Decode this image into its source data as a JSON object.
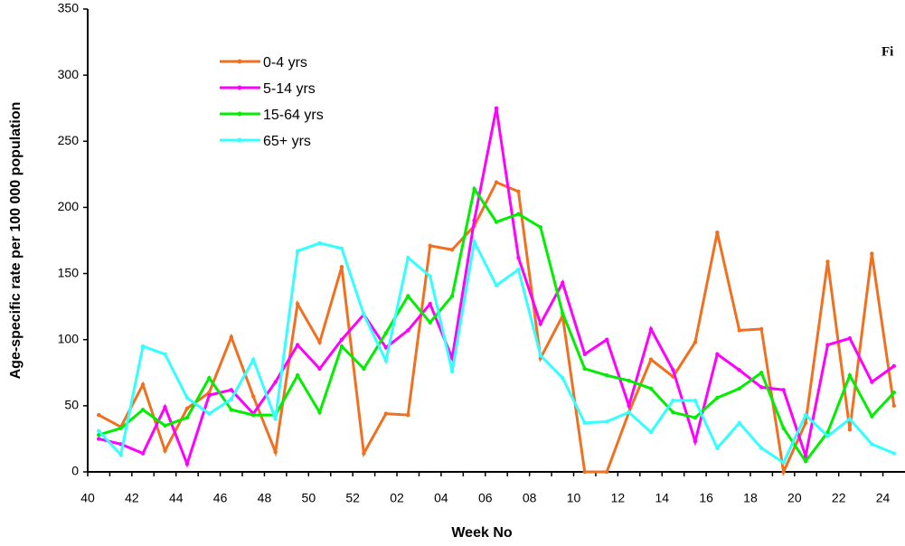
{
  "chart_data": {
    "type": "line",
    "y_label": "Age-specific rate per 100 000 population",
    "x_label": "Week No",
    "annotation": "Fi",
    "categories": [
      "40",
      null,
      "42",
      null,
      "44",
      null,
      "46",
      null,
      "48",
      null,
      "50",
      null,
      "52",
      null,
      "02",
      null,
      "04",
      null,
      "06",
      null,
      "08",
      null,
      "10",
      null,
      "12",
      null,
      "14",
      null,
      "16",
      null,
      "18",
      null,
      "20",
      null,
      "22",
      null,
      "24"
    ],
    "series": [
      {
        "name": "0-4 yrs",
        "color": "#f07020",
        "values": [
          43,
          34,
          66,
          16,
          48,
          60,
          102,
          57,
          15,
          127,
          98,
          155,
          14,
          44,
          43,
          171,
          168,
          186,
          219,
          212,
          86,
          118,
          0,
          0,
          45,
          85,
          72,
          98,
          181,
          107,
          108,
          0,
          37,
          159,
          32,
          165,
          50
        ]
      },
      {
        "name": "5-14 yrs",
        "color": "#ff00ff",
        "values": [
          25,
          21,
          14,
          49,
          6,
          58,
          62,
          44,
          68,
          96,
          78,
          100,
          119,
          94,
          107,
          127,
          86,
          190,
          275,
          162,
          112,
          143,
          89,
          100,
          50,
          108,
          77,
          23,
          89,
          77,
          64,
          62,
          12,
          96,
          101,
          68,
          80
        ]
      },
      {
        "name": "15-64 yrs",
        "color": "#00ee00",
        "values": [
          28,
          33,
          47,
          35,
          41,
          71,
          47,
          43,
          43,
          73,
          45,
          95,
          78,
          105,
          133,
          113,
          133,
          214,
          189,
          195,
          185,
          120,
          78,
          73,
          69,
          63,
          45,
          41,
          56,
          63,
          75,
          33,
          8,
          30,
          73,
          42,
          60
        ]
      },
      {
        "name": "65+ yrs",
        "color": "#33ffff",
        "values": [
          31,
          13,
          95,
          89,
          56,
          44,
          55,
          85,
          40,
          167,
          173,
          169,
          119,
          84,
          162,
          148,
          76,
          174,
          141,
          153,
          88,
          71,
          37,
          38,
          45,
          30,
          54,
          54,
          18,
          37,
          18,
          7,
          43,
          27,
          40,
          21,
          14
        ]
      }
    ],
    "ylim": [
      0,
      350
    ],
    "yticks": [
      0,
      50,
      100,
      150,
      200,
      250,
      300,
      350
    ]
  }
}
